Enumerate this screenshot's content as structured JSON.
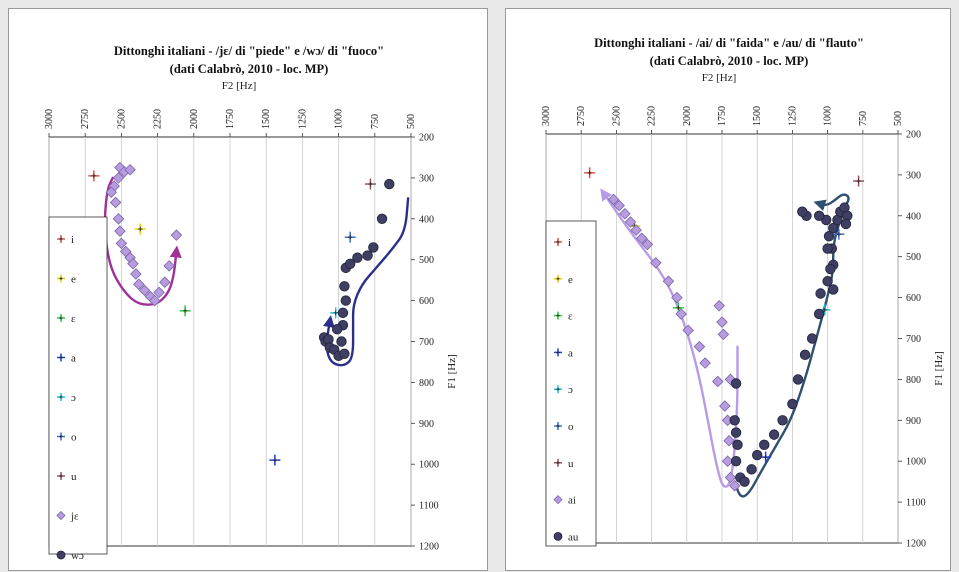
{
  "chart_data": [
    {
      "type": "scatter",
      "title": "Dittonghi italiani - /jɛ/ di \"piede\" e /wɔ/ di \"fuoco\"",
      "subtitle": "(dati Calabrò, 2010 - loc. MP)",
      "xlabel": "F2 [Hz]",
      "ylabel": "F1 [Hz]",
      "xlim": [
        3000,
        500
      ],
      "ylim": [
        1200,
        200
      ],
      "x_reversed": true,
      "y_reversed": true,
      "x_position": "top",
      "y_position": "right",
      "x_ticks": [
        "3000",
        "2750",
        "2500",
        "2250",
        "2000",
        "1750",
        "1500",
        "1250",
        "1000",
        "750",
        "500"
      ],
      "y_ticks": [
        "200",
        "300",
        "400",
        "500",
        "600",
        "700",
        "800",
        "900",
        "1000",
        "1100",
        "1200"
      ],
      "grid": true,
      "legend_position": "left",
      "series": [
        {
          "name": "i",
          "marker": "cross",
          "color": "#d9534f",
          "points": [
            [
              2690,
              295
            ]
          ]
        },
        {
          "name": "e",
          "marker": "cross",
          "color": "#e6d200",
          "points": [
            [
              2370,
              425
            ]
          ]
        },
        {
          "name": "ɛ",
          "marker": "cross",
          "color": "#2ecc40",
          "points": [
            [
              2060,
              625
            ]
          ]
        },
        {
          "name": "a",
          "marker": "cross",
          "color": "#1f3fd6",
          "points": [
            [
              1440,
              990
            ]
          ]
        },
        {
          "name": "ɔ",
          "marker": "cross",
          "color": "#16c4e0",
          "points": [
            [
              1020,
              630
            ]
          ]
        },
        {
          "name": "o",
          "marker": "cross",
          "color": "#3a6fd8",
          "points": [
            [
              920,
              445
            ]
          ]
        },
        {
          "name": "u",
          "marker": "cross",
          "color": "#a0505a",
          "points": [
            [
              780,
              315
            ]
          ]
        },
        {
          "name": "jɛ",
          "marker": "diamond",
          "color": "#b79ce0",
          "points": [
            [
              2510,
              275
            ],
            [
              2480,
              285
            ],
            [
              2440,
              280
            ],
            [
              2520,
              300
            ],
            [
              2550,
              320
            ],
            [
              2570,
              335
            ],
            [
              2540,
              360
            ],
            [
              2520,
              400
            ],
            [
              2510,
              430
            ],
            [
              2500,
              460
            ],
            [
              2470,
              480
            ],
            [
              2440,
              495
            ],
            [
              2420,
              510
            ],
            [
              2400,
              535
            ],
            [
              2380,
              560
            ],
            [
              2340,
              575
            ],
            [
              2300,
              590
            ],
            [
              2270,
              600
            ],
            [
              2240,
              580
            ],
            [
              2200,
              555
            ],
            [
              2170,
              515
            ],
            [
              2120,
              440
            ]
          ]
        },
        {
          "name": "wɔ",
          "marker": "circle",
          "color": "#3e3f63",
          "points": [
            [
              1100,
              690
            ],
            [
              1090,
              700
            ],
            [
              1070,
              695
            ],
            [
              1060,
              715
            ],
            [
              1030,
              720
            ],
            [
              1000,
              735
            ],
            [
              960,
              730
            ],
            [
              970,
              660
            ],
            [
              970,
              630
            ],
            [
              950,
              600
            ],
            [
              960,
              565
            ],
            [
              950,
              520
            ],
            [
              920,
              510
            ],
            [
              870,
              495
            ],
            [
              800,
              490
            ],
            [
              760,
              470
            ],
            [
              700,
              400
            ],
            [
              650,
              315
            ],
            [
              1010,
              670
            ],
            [
              980,
              700
            ]
          ]
        }
      ],
      "annotations": [
        {
          "shape": "arrow-path",
          "color": "#a0309a",
          "points": [
            [
              2560,
              300
            ],
            [
              2600,
              330
            ],
            [
              2620,
              420
            ],
            [
              2580,
              520
            ],
            [
              2480,
              580
            ],
            [
              2380,
              610
            ],
            [
              2260,
              610
            ],
            [
              2180,
              585
            ],
            [
              2140,
              545
            ],
            [
              2120,
              480
            ]
          ]
        },
        {
          "shape": "arrow-path",
          "color": "#2b2f8a",
          "points": [
            [
              520,
              350
            ],
            [
              540,
              430
            ],
            [
              620,
              470
            ],
            [
              740,
              520
            ],
            [
              840,
              560
            ],
            [
              900,
              610
            ],
            [
              900,
              660
            ],
            [
              900,
              740
            ],
            [
              960,
              760
            ],
            [
              1040,
              755
            ],
            [
              1080,
              730
            ],
            [
              1080,
              690
            ],
            [
              1060,
              650
            ]
          ]
        }
      ]
    },
    {
      "type": "scatter",
      "title": "Dittonghi italiani - /ai/ di \"faida\" e /au/ di \"flauto\"",
      "subtitle": "(dati Calabrò, 2010 - loc. MP)",
      "xlabel": "F2 [Hz]",
      "ylabel": "F1 [Hz]",
      "xlim": [
        3000,
        500
      ],
      "ylim": [
        1200,
        200
      ],
      "x_reversed": true,
      "y_reversed": true,
      "x_position": "top",
      "y_position": "right",
      "x_ticks": [
        "3000",
        "2750",
        "2500",
        "2250",
        "2000",
        "1750",
        "1500",
        "1250",
        "1000",
        "750",
        "500"
      ],
      "y_ticks": [
        "200",
        "300",
        "400",
        "500",
        "600",
        "700",
        "800",
        "900",
        "1000",
        "1100",
        "1200"
      ],
      "grid": true,
      "legend_position": "left",
      "series": [
        {
          "name": "i",
          "marker": "cross",
          "color": "#d9534f",
          "points": [
            [
              2690,
              295
            ]
          ]
        },
        {
          "name": "e",
          "marker": "cross",
          "color": "#e6d200",
          "points": [
            [
              2370,
              425
            ]
          ]
        },
        {
          "name": "ɛ",
          "marker": "cross",
          "color": "#2ecc40",
          "points": [
            [
              2060,
              625
            ]
          ]
        },
        {
          "name": "a",
          "marker": "cross",
          "color": "#1f3fd6",
          "points": [
            [
              1440,
              990
            ]
          ]
        },
        {
          "name": "ɔ",
          "marker": "cross",
          "color": "#16c4e0",
          "points": [
            [
              1020,
              630
            ]
          ]
        },
        {
          "name": "o",
          "marker": "cross",
          "color": "#3a6fd8",
          "points": [
            [
              920,
              445
            ]
          ]
        },
        {
          "name": "u",
          "marker": "cross",
          "color": "#a0505a",
          "points": [
            [
              780,
              315
            ]
          ]
        },
        {
          "name": "ai",
          "marker": "diamond",
          "color": "#b79ce0",
          "points": [
            [
              2520,
              360
            ],
            [
              2480,
              375
            ],
            [
              2440,
              395
            ],
            [
              2400,
              415
            ],
            [
              2360,
              435
            ],
            [
              2320,
              455
            ],
            [
              2280,
              470
            ],
            [
              2220,
              515
            ],
            [
              2130,
              560
            ],
            [
              2070,
              600
            ],
            [
              2040,
              640
            ],
            [
              1990,
              680
            ],
            [
              1910,
              720
            ],
            [
              1870,
              760
            ],
            [
              1780,
              805
            ],
            [
              1730,
              865
            ],
            [
              1770,
              620
            ],
            [
              1750,
              660
            ],
            [
              1740,
              690
            ],
            [
              1690,
              800
            ],
            [
              1710,
              900
            ],
            [
              1700,
              950
            ],
            [
              1710,
              1000
            ],
            [
              1690,
              1040
            ],
            [
              1660,
              1060
            ]
          ]
        },
        {
          "name": "au",
          "marker": "circle",
          "color": "#3e3f63",
          "points": [
            [
              1650,
              810
            ],
            [
              1660,
              900
            ],
            [
              1650,
              930
            ],
            [
              1640,
              960
            ],
            [
              1650,
              1000
            ],
            [
              1620,
              1040
            ],
            [
              1590,
              1050
            ],
            [
              1540,
              1020
            ],
            [
              1500,
              985
            ],
            [
              1450,
              960
            ],
            [
              1380,
              935
            ],
            [
              1320,
              900
            ],
            [
              1250,
              860
            ],
            [
              1210,
              800
            ],
            [
              1160,
              740
            ],
            [
              1110,
              700
            ],
            [
              1060,
              640
            ],
            [
              1050,
              590
            ],
            [
              1000,
              560
            ],
            [
              960,
              520
            ],
            [
              970,
              480
            ],
            [
              990,
              450
            ],
            [
              960,
              430
            ],
            [
              930,
              410
            ],
            [
              910,
              390
            ],
            [
              880,
              380
            ],
            [
              860,
              400
            ],
            [
              870,
              420
            ],
            [
              1010,
              410
            ],
            [
              1060,
              400
            ],
            [
              1150,
              400
            ],
            [
              1180,
              390
            ],
            [
              1000,
              480
            ],
            [
              980,
              530
            ],
            [
              960,
              580
            ]
          ]
        }
      ],
      "annotations": [
        {
          "shape": "arrow-path",
          "color": "#b89be6",
          "points": [
            [
              1640,
              720
            ],
            [
              1640,
              880
            ],
            [
              1680,
              1050
            ],
            [
              1740,
              1070
            ],
            [
              1790,
              1010
            ],
            [
              1850,
              900
            ],
            [
              1920,
              780
            ],
            [
              2000,
              680
            ],
            [
              2100,
              590
            ],
            [
              2200,
              530
            ],
            [
              2310,
              480
            ],
            [
              2420,
              430
            ],
            [
              2530,
              375
            ],
            [
              2590,
              345
            ]
          ]
        },
        {
          "shape": "arrow-path",
          "color": "#2f5070",
          "points": [
            [
              1660,
              1050
            ],
            [
              1620,
              1090
            ],
            [
              1560,
              1080
            ],
            [
              1480,
              1030
            ],
            [
              1380,
              970
            ],
            [
              1260,
              900
            ],
            [
              1160,
              800
            ],
            [
              1080,
              700
            ],
            [
              1010,
              610
            ],
            [
              960,
              540
            ],
            [
              960,
              470
            ],
            [
              920,
              420
            ],
            [
              880,
              380
            ],
            [
              840,
              355
            ],
            [
              890,
              345
            ],
            [
              960,
              365
            ],
            [
              1010,
              375
            ],
            [
              1060,
              370
            ]
          ]
        }
      ]
    }
  ]
}
